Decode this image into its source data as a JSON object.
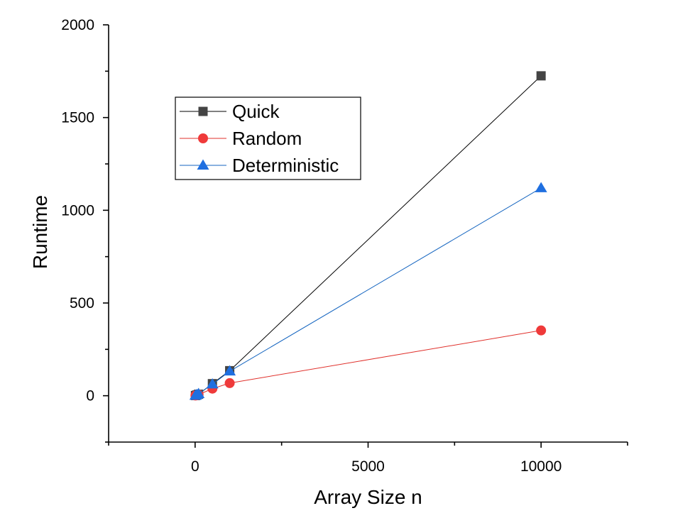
{
  "chart_data": {
    "type": "line",
    "title": "",
    "xlabel": "Array Size n",
    "ylabel": "Runtime",
    "xlim": [
      -2500,
      12500
    ],
    "ylim": [
      -250,
      2000
    ],
    "x_ticks": [
      0,
      5000,
      10000
    ],
    "x_tick_labels": [
      "0",
      "5000",
      "10000"
    ],
    "y_ticks": [
      0,
      500,
      1000,
      1500,
      2000
    ],
    "y_tick_labels": [
      "0",
      "500",
      "1000",
      "1500",
      "2000"
    ],
    "grid": false,
    "legend_position": "upper-left",
    "series": [
      {
        "name": "Quick",
        "color": "#000000",
        "marker_color": "#444444",
        "marker": "square",
        "x": [
          10,
          50,
          100,
          500,
          1000,
          10000
        ],
        "y": [
          1,
          4,
          8,
          65,
          135,
          1725
        ]
      },
      {
        "name": "Random",
        "color": "#e0302b",
        "marker_color": "#ef3a3a",
        "marker": "circle",
        "x": [
          10,
          50,
          100,
          500,
          1000,
          10000
        ],
        "y": [
          1,
          3,
          6,
          38,
          68,
          352
        ]
      },
      {
        "name": "Deterministic",
        "color": "#1565c0",
        "marker_color": "#1f6fe0",
        "marker": "triangle",
        "x": [
          10,
          50,
          100,
          500,
          1000,
          10000
        ],
        "y": [
          1,
          5,
          10,
          62,
          132,
          1120
        ]
      }
    ]
  }
}
